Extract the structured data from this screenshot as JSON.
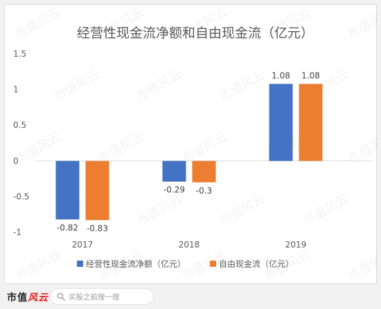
{
  "chart_data": {
    "type": "bar",
    "title": "经营性现金流净额和自由现金流（亿元）",
    "categories": [
      "2017",
      "2018",
      "2019"
    ],
    "series": [
      {
        "name": "经营性现金流净额（亿元）",
        "values": [
          -0.82,
          -0.29,
          1.08
        ],
        "labels": [
          "-0.82",
          "-0.29",
          "1.08"
        ],
        "color": "#4472c4"
      },
      {
        "name": "自由现金流（亿元）",
        "values": [
          -0.83,
          -0.3,
          1.08
        ],
        "labels": [
          "-0.83",
          "-0.3",
          "1.08"
        ],
        "color": "#ed7d31"
      }
    ],
    "ylim": [
      -1,
      1.5
    ],
    "yticks": [
      1.5,
      1,
      0.5,
      0,
      -0.5,
      -1
    ],
    "ytick_labels": [
      "1.5",
      "1",
      "0.5",
      "0",
      "-0.5",
      "-1"
    ],
    "grid": false,
    "legend": "bottom"
  },
  "watermark": {
    "text": "市值风云"
  },
  "footer": {
    "brand_plain": "市值",
    "brand_accent": "风云",
    "search_placeholder": "买股之前搜一搜",
    "search_icon": "search-icon"
  }
}
